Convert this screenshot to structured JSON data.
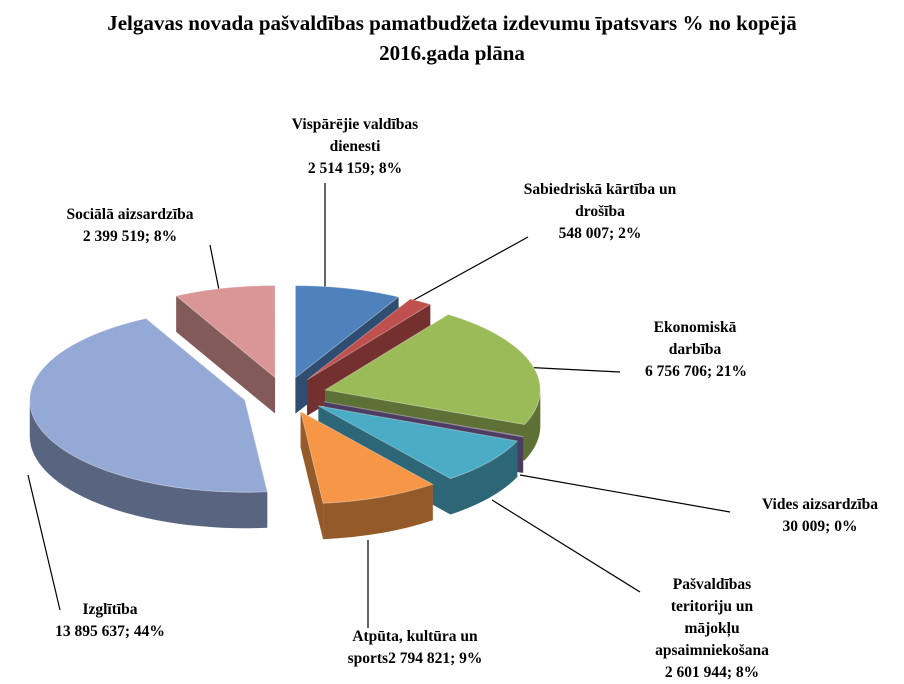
{
  "chart_data": {
    "type": "pie",
    "title": "Jelgavas novada pašvaldības pamatbudžeta izdevumu īpatsvars % no kopējā 2016.gada plāna",
    "categories": [
      "Vispārējie valdības dienesti",
      "Sabiedriskā kārtība un drošība",
      "Ekonomiskā darbība",
      "Vides aizsardzība",
      "Pašvaldības teritoriju un mājokļu apsaimniekošana",
      "Atpūta, kultūra un sports",
      "Izglītība",
      "Sociālā aizsardzība"
    ],
    "values": [
      2514159,
      548007,
      6756706,
      30009,
      2601944,
      2794821,
      13895637,
      2399519
    ],
    "value_labels": [
      "2 514 159; 8%",
      "548 007; 2%",
      "6 756 706; 21%",
      "30 009; 0%",
      "2 601 944; 8%",
      "2 794 821; 9%",
      "13 895 637; 44%",
      "2 399 519; 8%"
    ],
    "colors": [
      "#4f81bd",
      "#c0504d",
      "#9bbb59",
      "#8064a2",
      "#4bacc6",
      "#f79646",
      "#95a9d6",
      "#d99694",
      "#c3d69b"
    ]
  }
}
